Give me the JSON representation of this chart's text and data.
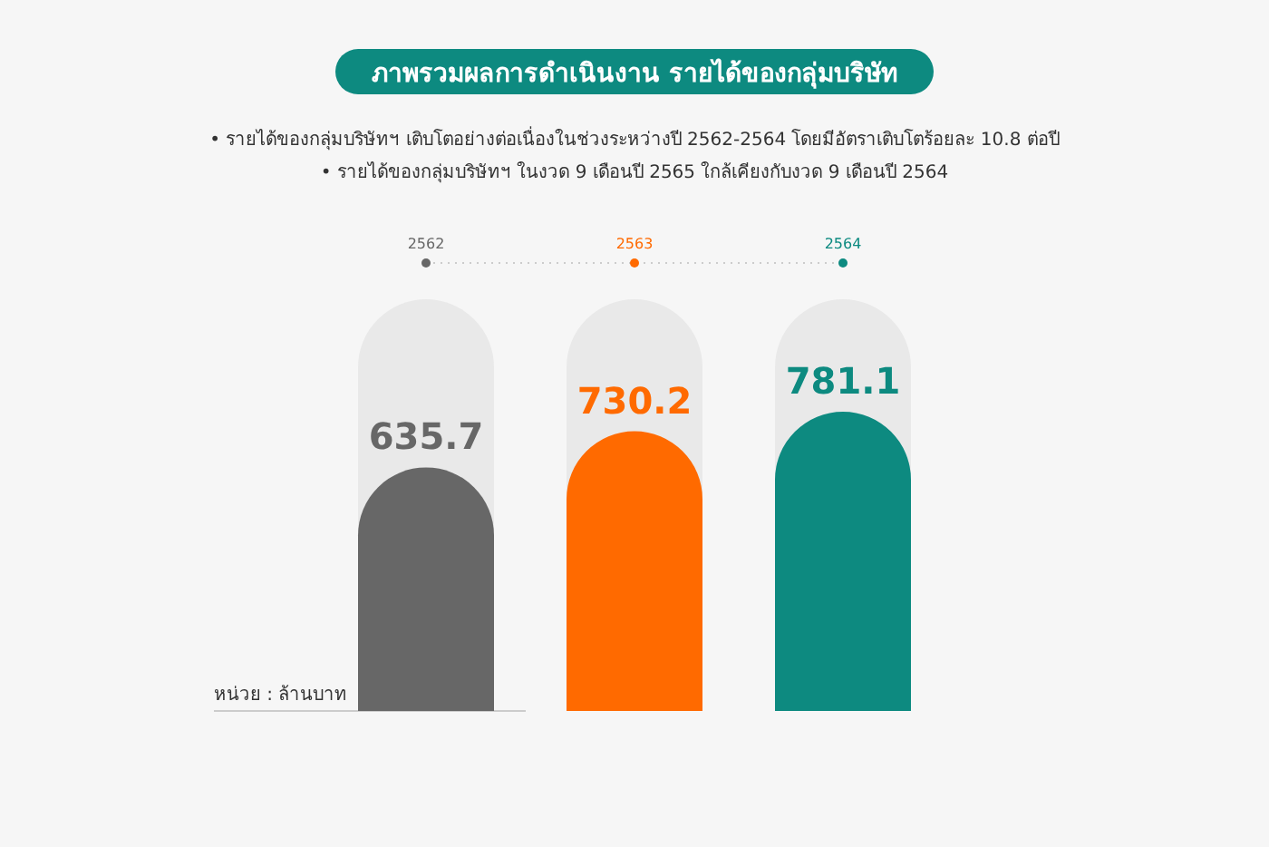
{
  "chart_data": {
    "type": "bar",
    "title": "ภาพรวมผลการดำเนินงาน รายได้ของกลุ่มบริษัท",
    "annotations": [
      "• รายได้ของกลุ่มบริษัทฯ เติบโตอย่างต่อเนื่องในช่วงระหว่างปี 2562-2564 โดยมีอัตราเติบโตร้อยละ 10.8 ต่อปี",
      "• รายได้ของกลุ่มบริษัทฯ ในงวด 9 เดือนปี 2565 ใกล้เคียงกับงวด 9 เดือนปี 2564",
      "หน่วย : ล้านบาท"
    ],
    "categories": [
      "2562",
      "2563",
      "2564"
    ],
    "values": [
      635.7,
      730.2,
      781.1
    ],
    "colors": [
      "#676767",
      "#ff6a00",
      "#0d8a80"
    ],
    "data_labels": true
  }
}
